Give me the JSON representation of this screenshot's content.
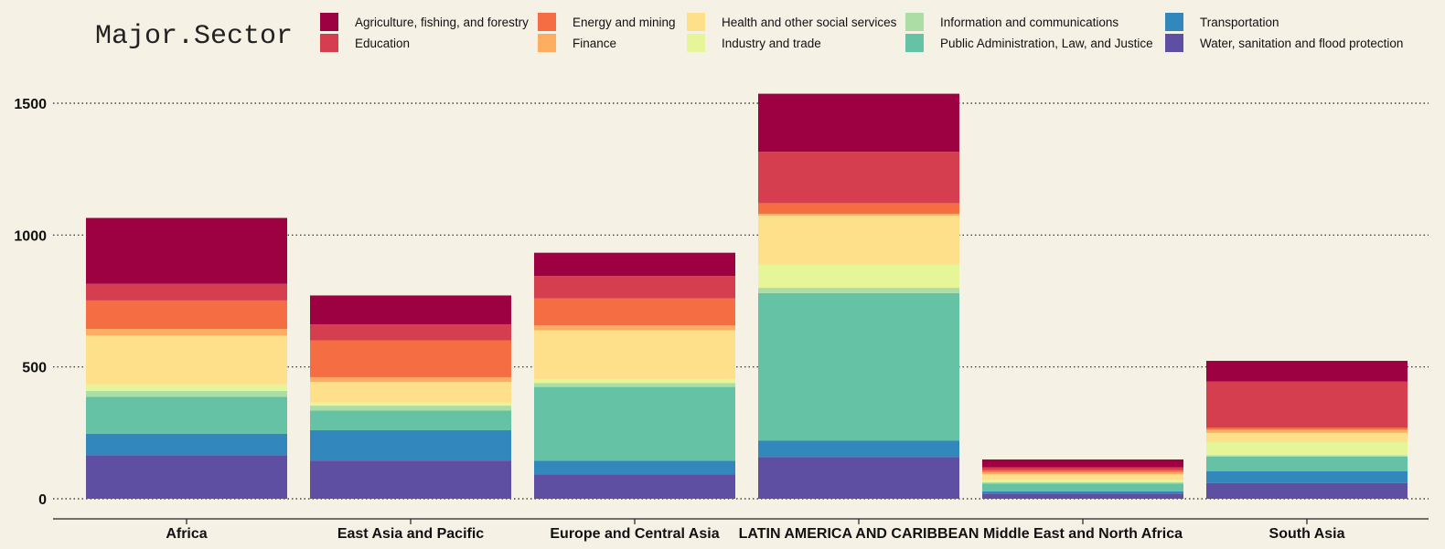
{
  "chart_data": {
    "type": "bar",
    "stacked": true,
    "categories": [
      "Africa",
      "East Asia and Pacific",
      "Europe and Central Asia",
      "LATIN AMERICA AND CARIBBEAN",
      "Middle East and North Africa",
      "South Asia"
    ],
    "legend_title": "Major.Sector",
    "legend_placement": "top",
    "ylim": [
      0,
      1550
    ],
    "yticks": [
      0,
      500,
      1000,
      1500
    ],
    "grid": "horizontal-dotted",
    "series": [
      {
        "name": "Water, sanitation and flood protection",
        "color": "#5e4fa2",
        "values": [
          165,
          145,
          92,
          158,
          20,
          60
        ]
      },
      {
        "name": "Transportation",
        "color": "#3288bd",
        "values": [
          82,
          115,
          52,
          62,
          8,
          45
        ]
      },
      {
        "name": "Public Administration, Law, and Justice",
        "color": "#66c2a5",
        "values": [
          140,
          75,
          280,
          560,
          30,
          55
        ]
      },
      {
        "name": "Information and communications",
        "color": "#abdda4",
        "values": [
          22,
          18,
          15,
          20,
          5,
          5
        ]
      },
      {
        "name": "Industry and trade",
        "color": "#e6f598",
        "values": [
          25,
          12,
          15,
          88,
          10,
          50
        ]
      },
      {
        "name": "Health and other social services",
        "color": "#fee08b",
        "values": [
          185,
          78,
          185,
          185,
          20,
          35
        ]
      },
      {
        "name": "Finance",
        "color": "#fdae61",
        "values": [
          25,
          18,
          18,
          8,
          8,
          12
        ]
      },
      {
        "name": "Energy and mining",
        "color": "#f46d43",
        "values": [
          108,
          140,
          103,
          40,
          8,
          8
        ]
      },
      {
        "name": "Education",
        "color": "#d53e4f",
        "values": [
          63,
          60,
          85,
          195,
          10,
          175
        ]
      },
      {
        "name": "Agriculture, fishing, and forestry",
        "color": "#9e0142",
        "values": [
          250,
          110,
          88,
          220,
          30,
          78
        ]
      }
    ],
    "legend_order": [
      "Agriculture, fishing, and forestry",
      "Education",
      "Energy and mining",
      "Finance",
      "Health and other social services",
      "Industry and trade",
      "Information and communications",
      "Public Administration, Law, and Justice",
      "Transportation",
      "Water, sanitation and flood protection"
    ]
  }
}
